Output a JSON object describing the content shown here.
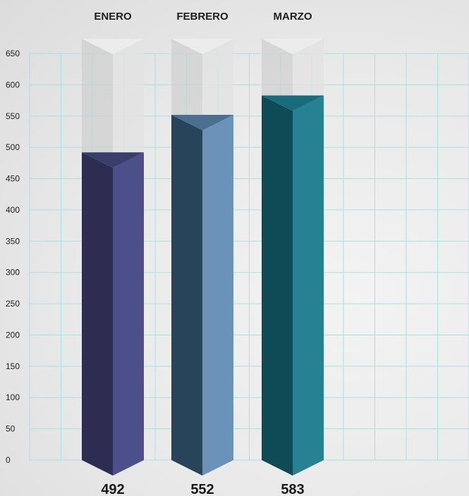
{
  "chart_data": {
    "type": "bar",
    "title": "",
    "xlabel": "",
    "ylabel": "",
    "categories": [
      "ENERO",
      "FEBRERO",
      "MARZO"
    ],
    "values": [
      492,
      552,
      583
    ],
    "ylim": [
      0,
      650
    ],
    "yticks": [
      0,
      50,
      100,
      150,
      200,
      250,
      300,
      350,
      400,
      450,
      500,
      550,
      600,
      650
    ],
    "value_labels": [
      "492",
      "552",
      "583"
    ],
    "grid": true,
    "category_labels_position": "top",
    "value_labels_position": "bottom",
    "colors": [
      {
        "left": "#2c2d51",
        "right": "#4c4f89",
        "top": "#3b3d6b"
      },
      {
        "left": "#27445a",
        "right": "#6b93b9",
        "top": "#4a6f91"
      },
      {
        "left": "#0f4a57",
        "right": "#268193",
        "top": "#176b7b"
      }
    ],
    "grid_color": "#a6e3dd"
  }
}
